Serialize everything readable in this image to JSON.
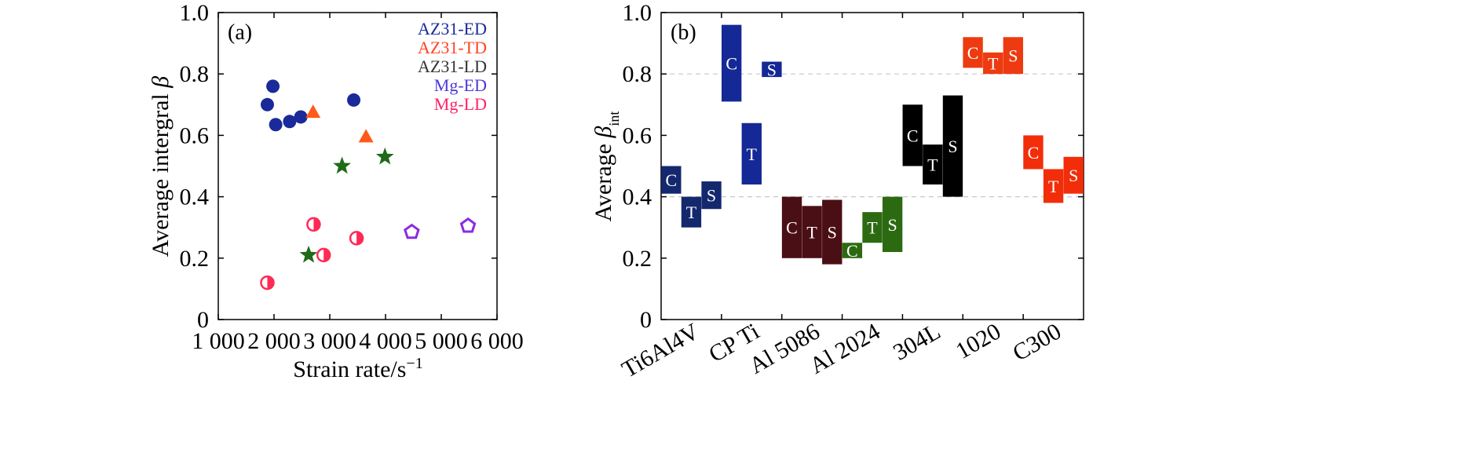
{
  "chart_data": [
    {
      "type": "scatter",
      "panel_label": "(a)",
      "xlabel": "Strain rate/s",
      "xlabel_sup": "−1",
      "ylabel": "Average intergral ",
      "ylabel_symbol": "β",
      "xlim": [
        1000,
        6000
      ],
      "ylim": [
        0,
        1.0
      ],
      "xticks": [
        1000,
        2000,
        3000,
        4000,
        5000,
        6000
      ],
      "xtick_labels": [
        "1 000",
        "2 000",
        "3 000",
        "4 000",
        "5 000",
        "6 000"
      ],
      "yticks": [
        0,
        0.2,
        0.4,
        0.6,
        0.8,
        1.0
      ],
      "ytick_labels": [
        "0",
        "0.2",
        "0.4",
        "0.6",
        "0.8",
        "1.0"
      ],
      "legend_position": "top-right",
      "series": [
        {
          "name": "AZ31-ED",
          "marker": "circle",
          "color": "#1a2a9a",
          "label_color": "#1a2a9a",
          "points": [
            [
              1880,
              0.7
            ],
            [
              1980,
              0.76
            ],
            [
              2030,
              0.635
            ],
            [
              2280,
              0.645
            ],
            [
              2480,
              0.66
            ],
            [
              3430,
              0.715
            ]
          ]
        },
        {
          "name": "AZ31-TD",
          "marker": "triangle",
          "color": "#ff5a1a",
          "label_color": "#ff4422",
          "points": [
            [
              2700,
              0.675
            ],
            [
              3650,
              0.595
            ]
          ]
        },
        {
          "name": "AZ31-LD",
          "marker": "star",
          "color": "#1f6b1a",
          "label_color": "#333333",
          "points": [
            [
              3220,
              0.5
            ],
            [
              3990,
              0.53
            ],
            [
              2620,
              0.21
            ]
          ]
        },
        {
          "name": "Mg-ED",
          "marker": "pentagon",
          "color": "#8a2be2",
          "label_color": "#4b3bd6",
          "points": [
            [
              4470,
              0.285
            ],
            [
              5480,
              0.305
            ]
          ]
        },
        {
          "name": "Mg-LD",
          "marker": "half-circle",
          "color": "#ff2a55",
          "label_color": "#ff2266",
          "points": [
            [
              1880,
              0.12
            ],
            [
              2710,
              0.31
            ],
            [
              2890,
              0.21
            ],
            [
              3480,
              0.265
            ]
          ]
        }
      ]
    },
    {
      "type": "bar",
      "panel_label": "(b)",
      "ylabel": "Average ",
      "ylabel_symbol": "β",
      "ylabel_sub": "int",
      "ylim": [
        0,
        1.0
      ],
      "yticks": [
        0,
        0.2,
        0.4,
        0.6,
        0.8,
        1.0
      ],
      "ytick_labels": [
        "0",
        "0.2",
        "0.4",
        "0.6",
        "0.8",
        "1.0"
      ],
      "gridlines": [
        0.4,
        0.8
      ],
      "categories": [
        "Ti6Al4V",
        "CP Ti",
        "Al 5086",
        "Al 2024",
        "304L",
        "1020",
        "C300"
      ],
      "bars": [
        {
          "group": 0,
          "label": "C",
          "low": 0.41,
          "high": 0.5,
          "color": "#14286e"
        },
        {
          "group": 0,
          "label": "T",
          "low": 0.3,
          "high": 0.4,
          "color": "#14286e"
        },
        {
          "group": 0,
          "label": "S",
          "low": 0.36,
          "high": 0.45,
          "color": "#14286e"
        },
        {
          "group": 1,
          "label": "C",
          "low": 0.71,
          "high": 0.96,
          "color": "#142896"
        },
        {
          "group": 1,
          "label": "T",
          "low": 0.44,
          "high": 0.64,
          "color": "#142896"
        },
        {
          "group": 1,
          "label": "S",
          "low": 0.79,
          "high": 0.84,
          "color": "#142896"
        },
        {
          "group": 2,
          "label": "C",
          "low": 0.2,
          "high": 0.4,
          "color": "#4a0f14"
        },
        {
          "group": 2,
          "label": "T",
          "low": 0.2,
          "high": 0.37,
          "color": "#4a0f14"
        },
        {
          "group": 2,
          "label": "S",
          "low": 0.18,
          "high": 0.39,
          "color": "#4a0f14"
        },
        {
          "group": 3,
          "label": "C",
          "low": 0.2,
          "high": 0.25,
          "color": "#2c6a12"
        },
        {
          "group": 3,
          "label": "T",
          "low": 0.25,
          "high": 0.35,
          "color": "#2c6a12"
        },
        {
          "group": 3,
          "label": "S",
          "low": 0.22,
          "high": 0.4,
          "color": "#2c6a12"
        },
        {
          "group": 4,
          "label": "C",
          "low": 0.5,
          "high": 0.7,
          "color": "#000000"
        },
        {
          "group": 4,
          "label": "T",
          "low": 0.44,
          "high": 0.57,
          "color": "#000000"
        },
        {
          "group": 4,
          "label": "S",
          "low": 0.4,
          "high": 0.73,
          "color": "#000000"
        },
        {
          "group": 5,
          "label": "C",
          "low": 0.82,
          "high": 0.92,
          "color": "#ee3a10"
        },
        {
          "group": 5,
          "label": "T",
          "low": 0.8,
          "high": 0.87,
          "color": "#ee3a10"
        },
        {
          "group": 5,
          "label": "S",
          "low": 0.8,
          "high": 0.92,
          "color": "#ee3a10"
        },
        {
          "group": 6,
          "label": "C",
          "low": 0.49,
          "high": 0.6,
          "color": "#f22d0a"
        },
        {
          "group": 6,
          "label": "T",
          "low": 0.38,
          "high": 0.49,
          "color": "#f22d0a"
        },
        {
          "group": 6,
          "label": "S",
          "low": 0.41,
          "high": 0.53,
          "color": "#f22d0a"
        }
      ]
    }
  ]
}
